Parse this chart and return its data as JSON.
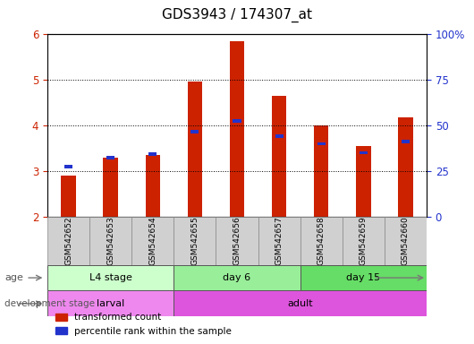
{
  "title": "GDS3943 / 174307_at",
  "samples": [
    "GSM542652",
    "GSM542653",
    "GSM542654",
    "GSM542655",
    "GSM542656",
    "GSM542657",
    "GSM542658",
    "GSM542659",
    "GSM542660"
  ],
  "red_tops": [
    2.9,
    3.3,
    3.35,
    4.97,
    5.85,
    4.65,
    4.0,
    3.55,
    4.18
  ],
  "blue_tops": [
    3.1,
    3.3,
    3.37,
    3.87,
    4.1,
    3.77,
    3.6,
    3.4,
    3.65
  ],
  "bar_bottom": 2.0,
  "ylim": [
    2.0,
    6.0
  ],
  "yticks_left": [
    2,
    3,
    4,
    5,
    6
  ],
  "yticks_right": [
    0,
    25,
    50,
    75,
    100
  ],
  "right_tick_labels": [
    "0",
    "25",
    "50",
    "75",
    "100%"
  ],
  "red_color": "#cc2200",
  "blue_color": "#2233cc",
  "bar_width": 0.35,
  "age_groups": [
    {
      "label": "L4 stage",
      "start": 0,
      "end": 3,
      "color": "#ccffcc"
    },
    {
      "label": "day 6",
      "start": 3,
      "end": 6,
      "color": "#99ee99"
    },
    {
      "label": "day 15",
      "start": 6,
      "end": 9,
      "color": "#66dd66"
    }
  ],
  "dev_groups": [
    {
      "label": "larval",
      "start": 0,
      "end": 3,
      "color": "#ee88ee"
    },
    {
      "label": "adult",
      "start": 3,
      "end": 9,
      "color": "#dd55dd"
    }
  ],
  "legend_red": "transformed count",
  "legend_blue": "percentile rank within the sample",
  "title_fontsize": 11,
  "tick_fontsize": 8.5,
  "bar_area_bg": "#ffffff",
  "sample_box_bg": "#d0d0d0"
}
